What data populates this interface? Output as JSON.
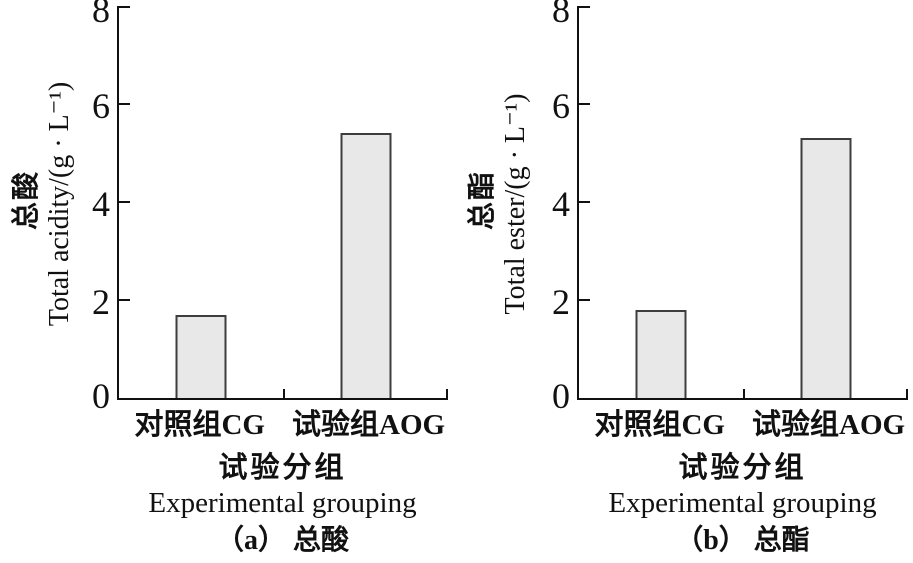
{
  "figure": {
    "background": "#ffffff",
    "ink_color": "#111111",
    "bar_fill": "#e8e8e8",
    "bar_border": "#3d3d3d"
  },
  "chart_data": [
    {
      "type": "bar",
      "panel": "a",
      "caption": "（a） 总酸",
      "ylabel_cn": "总酸",
      "ylabel_en": "Total acidity/(g · L⁻¹)",
      "xlabel_cn": "试验分组",
      "xlabel_en": "Experimental grouping",
      "categories": [
        "对照组CG",
        "试验组AOG"
      ],
      "values": [
        1.7,
        5.4
      ],
      "ylim": [
        0,
        8
      ],
      "yticks": [
        0,
        2,
        4,
        6,
        8
      ],
      "ytick_labels": [
        "8",
        "6",
        "4",
        "2",
        "0"
      ],
      "grid": false,
      "legend": false
    },
    {
      "type": "bar",
      "panel": "b",
      "caption": "（b） 总酯",
      "ylabel_cn": "总酯",
      "ylabel_en": "Total ester/(g · L⁻¹)",
      "xlabel_cn": "试验分组",
      "xlabel_en": "Experimental grouping",
      "categories": [
        "对照组CG",
        "试验组AOG"
      ],
      "values": [
        1.8,
        5.3
      ],
      "ylim": [
        0,
        8
      ],
      "yticks": [
        0,
        2,
        4,
        6,
        8
      ],
      "ytick_labels": [
        "8",
        "6",
        "4",
        "2",
        "0"
      ],
      "grid": false,
      "legend": false
    }
  ]
}
